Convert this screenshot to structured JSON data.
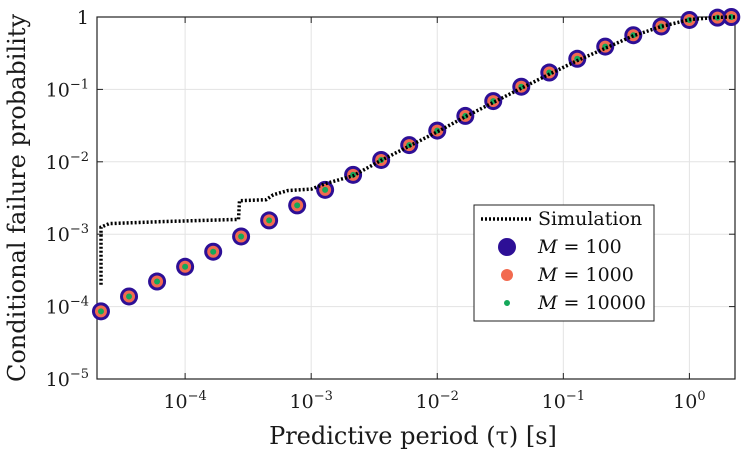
{
  "chart_data": {
    "type": "scatter",
    "xscale": "log",
    "yscale": "log",
    "xlim": [
      2e-05,
      2.3
    ],
    "ylim": [
      1e-05,
      1
    ],
    "grid": true,
    "title": "",
    "xlabel": "Predictive period (τ) [s]",
    "ylabel": "Conditional failure probability",
    "xticks": [
      {
        "value": 0.0001,
        "base": "10",
        "exp": "−4"
      },
      {
        "value": 0.001,
        "base": "10",
        "exp": "−3"
      },
      {
        "value": 0.01,
        "base": "10",
        "exp": "−2"
      },
      {
        "value": 0.1,
        "base": "10",
        "exp": "−1"
      },
      {
        "value": 1,
        "base": "10",
        "exp": "0"
      }
    ],
    "yticks": [
      {
        "value": 1e-05,
        "base": "10",
        "exp": "−5"
      },
      {
        "value": 0.0001,
        "base": "10",
        "exp": "−4"
      },
      {
        "value": 0.001,
        "base": "10",
        "exp": "−3"
      },
      {
        "value": 0.01,
        "base": "10",
        "exp": "−2"
      },
      {
        "value": 0.1,
        "base": "10",
        "exp": "−1"
      },
      {
        "value": 1,
        "base": "1",
        "exp": ""
      }
    ],
    "x": [
      2.15e-05,
      3.59e-05,
      5.99e-05,
      0.0001,
      0.000167,
      0.000278,
      0.000464,
      0.000774,
      0.00129,
      0.00215,
      0.00359,
      0.00599,
      0.01,
      0.0167,
      0.0278,
      0.0464,
      0.0774,
      0.129,
      0.215,
      0.359,
      0.599,
      1.0,
      1.67,
      2.15
    ],
    "series": [
      {
        "name": "M = 100",
        "legend_math": "M",
        "legend_rest": "= 100",
        "color": "#2d0f96",
        "marker": "large-circle",
        "values": [
          8.6e-05,
          0.000138,
          0.000222,
          0.000355,
          0.000573,
          0.00093,
          0.00155,
          0.0025,
          0.0041,
          0.0066,
          0.0106,
          0.017,
          0.027,
          0.043,
          0.069,
          0.109,
          0.171,
          0.265,
          0.39,
          0.56,
          0.74,
          0.91,
          0.98,
          1.0
        ]
      },
      {
        "name": "M = 1000",
        "legend_math": "M",
        "legend_rest": "= 1000",
        "color": "#f26a4f",
        "marker": "medium-circle",
        "values": [
          8.6e-05,
          0.000138,
          0.000222,
          0.000355,
          0.000573,
          0.00093,
          0.00155,
          0.0025,
          0.0041,
          0.0066,
          0.0106,
          0.017,
          0.027,
          0.043,
          0.069,
          0.109,
          0.171,
          0.265,
          0.39,
          0.56,
          0.74,
          0.91,
          0.98,
          1.0
        ]
      },
      {
        "name": "M = 10000",
        "legend_math": "M",
        "legend_rest": "= 10000",
        "color": "#14a85a",
        "marker": "small-dot",
        "values": [
          8.6e-05,
          0.000138,
          0.000222,
          0.000355,
          0.000573,
          0.00093,
          0.00155,
          0.0025,
          0.0041,
          0.0066,
          0.0106,
          0.017,
          0.027,
          0.043,
          0.069,
          0.109,
          0.171,
          0.265,
          0.39,
          0.56,
          0.74,
          0.91,
          0.98,
          1.0
        ]
      }
    ],
    "simulation": {
      "name": "Simulation",
      "color": "#000000",
      "style": "dotted",
      "points": [
        [
          2.15e-05,
          0.0002
        ],
        [
          2.15e-05,
          0.00125
        ],
        [
          2.5e-05,
          0.0014
        ],
        [
          7e-05,
          0.0015
        ],
        [
          0.000265,
          0.0016
        ],
        [
          0.00027,
          0.0029
        ],
        [
          0.00044,
          0.003
        ],
        [
          0.0005,
          0.0035
        ],
        [
          0.00065,
          0.004
        ],
        [
          0.001,
          0.0042
        ],
        [
          0.0013,
          0.005
        ],
        [
          0.00215,
          0.0064
        ],
        [
          0.00359,
          0.0105
        ],
        [
          0.00599,
          0.0165
        ],
        [
          0.01,
          0.026
        ],
        [
          0.0167,
          0.042
        ],
        [
          0.0278,
          0.066
        ],
        [
          0.0464,
          0.104
        ],
        [
          0.0774,
          0.162
        ],
        [
          0.129,
          0.25
        ],
        [
          0.215,
          0.37
        ],
        [
          0.359,
          0.55
        ],
        [
          0.599,
          0.74
        ],
        [
          1.0,
          0.92
        ],
        [
          1.67,
          0.99
        ],
        [
          2.3,
          1.0
        ]
      ]
    },
    "legend_position": "lower-right"
  }
}
